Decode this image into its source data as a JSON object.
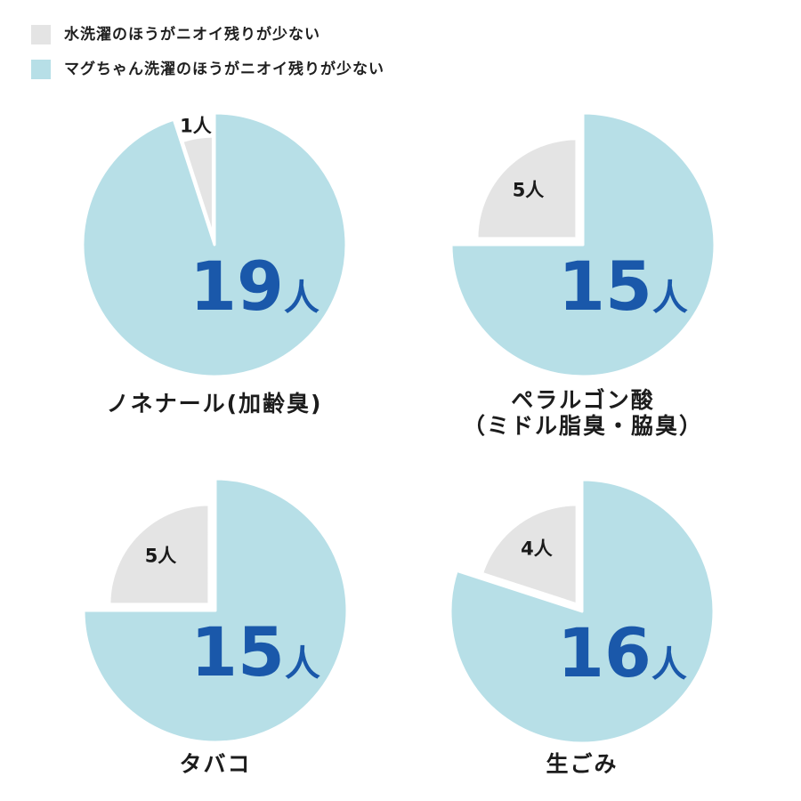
{
  "colors": {
    "water_gray": "#e4e4e4",
    "magchan_blue": "#b7dfe7",
    "number_blue": "#1a58aa",
    "label_black": "#1a1a1a",
    "background": "#ffffff"
  },
  "legend": {
    "items": [
      {
        "label": "水洗濯のほうがニオイ残りが少ない",
        "color": "#e4e4e4"
      },
      {
        "label": "マグちゃん洗濯のほうがニオイ残りが少ない",
        "color": "#b7dfe7"
      }
    ]
  },
  "chart_data": [
    {
      "type": "pie",
      "title": "ノネナール(加齢臭)",
      "total": 20,
      "unit": "人",
      "legend_position": "top-left",
      "slices": [
        {
          "name": "マグちゃん洗濯のほうがニオイ残りが少ない",
          "value": 19,
          "label": "19人",
          "color": "#b7dfe7"
        },
        {
          "name": "水洗濯のほうがニオイ残りが少ない",
          "value": 1,
          "label": "1人",
          "color": "#e4e4e4"
        }
      ]
    },
    {
      "type": "pie",
      "title": "ペラルゴン酸\n（ミドル脂臭・脇臭）",
      "total": 20,
      "unit": "人",
      "legend_position": "top-left",
      "slices": [
        {
          "name": "マグちゃん洗濯のほうがニオイ残りが少ない",
          "value": 15,
          "label": "15人",
          "color": "#b7dfe7"
        },
        {
          "name": "水洗濯のほうがニオイ残りが少ない",
          "value": 5,
          "label": "5人",
          "color": "#e4e4e4"
        }
      ]
    },
    {
      "type": "pie",
      "title": "タバコ",
      "total": 20,
      "unit": "人",
      "legend_position": "top-left",
      "slices": [
        {
          "name": "マグちゃん洗濯のほうがニオイ残りが少ない",
          "value": 15,
          "label": "15人",
          "color": "#b7dfe7"
        },
        {
          "name": "水洗濯のほうがニオイ残りが少ない",
          "value": 5,
          "label": "5人",
          "color": "#e4e4e4"
        }
      ]
    },
    {
      "type": "pie",
      "title": "生ごみ",
      "total": 20,
      "unit": "人",
      "legend_position": "top-left",
      "slices": [
        {
          "name": "マグちゃん洗濯のほうがニオイ残りが少ない",
          "value": 16,
          "label": "16人",
          "color": "#b7dfe7"
        },
        {
          "name": "水洗濯のほうがニオイ残りが少ない",
          "value": 4,
          "label": "4人",
          "color": "#e4e4e4"
        }
      ]
    }
  ]
}
